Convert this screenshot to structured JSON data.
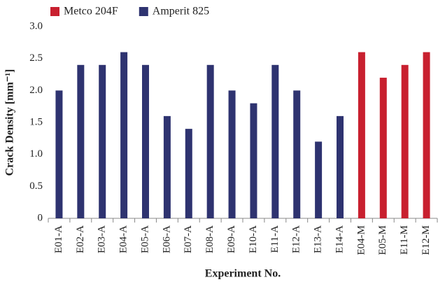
{
  "chart_data": {
    "type": "bar",
    "categories": [
      "E01-A",
      "E02-A",
      "E03-A",
      "E04-A",
      "E05-A",
      "E06-A",
      "E07-A",
      "E08-A",
      "E09-A",
      "E10-A",
      "E11-A",
      "E12-A",
      "E13-A",
      "E14-A",
      "E04-M",
      "E05-M",
      "E11-M",
      "E12-M"
    ],
    "series": [
      {
        "name": "Metco 204F",
        "color": "#c8202f",
        "values": [
          null,
          null,
          null,
          null,
          null,
          null,
          null,
          null,
          null,
          null,
          null,
          null,
          null,
          null,
          2.6,
          2.2,
          2.4,
          2.6
        ]
      },
      {
        "name": "Amperit 825",
        "color": "#2e3370",
        "values": [
          2.0,
          2.4,
          2.4,
          2.6,
          2.4,
          1.6,
          1.4,
          2.4,
          2.0,
          1.8,
          2.4,
          2.0,
          1.2,
          1.6,
          null,
          null,
          null,
          null
        ]
      }
    ],
    "ylabel": "Crack Density [mm⁻¹]",
    "xlabel": "Experiment No.",
    "ylim": [
      0,
      3
    ],
    "yticks": [
      0,
      0.5,
      {
        "value": 1,
        "label": "1.0"
      },
      1.5,
      {
        "value": 2,
        "label": "2.0"
      },
      2.5,
      {
        "value": 3,
        "label": "3.0"
      }
    ],
    "grid": false,
    "legend": "top-left"
  }
}
